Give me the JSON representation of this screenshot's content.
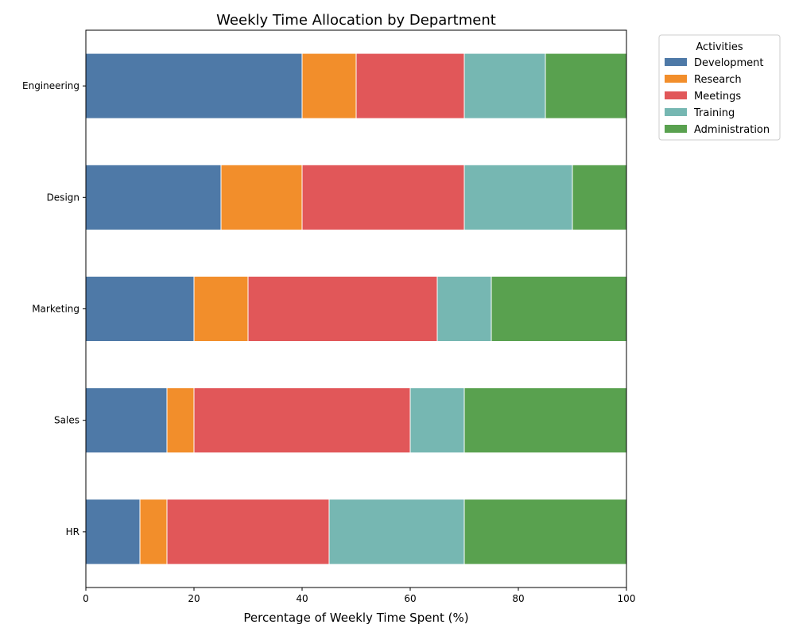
{
  "chart_data": {
    "type": "bar",
    "orientation": "horizontal",
    "stacked": true,
    "title": "Weekly Time Allocation by Department",
    "xlabel": "Percentage of Weekly Time Spent (%)",
    "ylabel": "",
    "xlim": [
      0,
      100
    ],
    "xticks": [
      "0",
      "20",
      "40",
      "60",
      "80",
      "100"
    ],
    "categories": [
      "Engineering",
      "Design",
      "Marketing",
      "Sales",
      "HR"
    ],
    "legend": {
      "title": "Activities",
      "placement": "outside-top-right"
    },
    "series": [
      {
        "name": "Development",
        "color": "#4e79a7",
        "values": [
          40,
          25,
          20,
          15,
          10
        ]
      },
      {
        "name": "Research",
        "color": "#f28e2b",
        "values": [
          10,
          15,
          10,
          5,
          5
        ]
      },
      {
        "name": "Meetings",
        "color": "#e15759",
        "values": [
          20,
          30,
          35,
          40,
          30
        ]
      },
      {
        "name": "Training",
        "color": "#76b7b2",
        "values": [
          15,
          20,
          10,
          10,
          25
        ]
      },
      {
        "name": "Administration",
        "color": "#59a14f",
        "values": [
          15,
          10,
          25,
          30,
          30
        ]
      }
    ],
    "grid": false
  }
}
